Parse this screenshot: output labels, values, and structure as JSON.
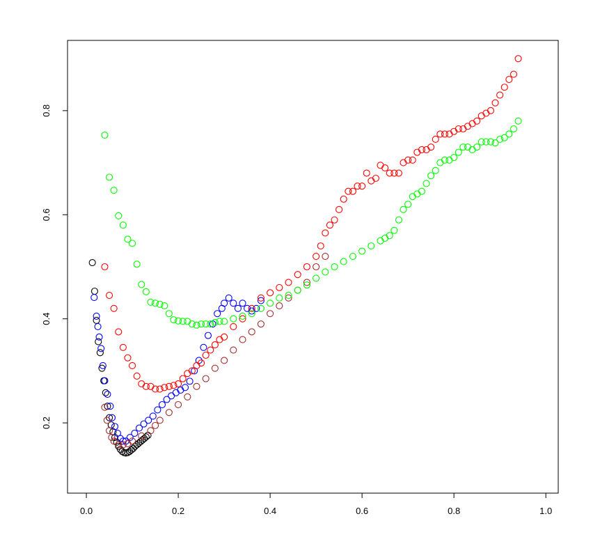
{
  "chart_data": {
    "type": "scatter",
    "xlim": [
      -0.041,
      1.027
    ],
    "ylim": [
      0.065,
      0.935
    ],
    "xticks": [
      {
        "value": 0,
        "label": "0.0"
      },
      0.2,
      0.4,
      0.6,
      0.8,
      {
        "value": 1,
        "label": "1.0"
      }
    ],
    "yticks": [
      0.2,
      0.4,
      0.6,
      0.8
    ],
    "series": [
      {
        "color": "#000000",
        "x": [
          0.013,
          0.018,
          0.022,
          0.026,
          0.03,
          0.034,
          0.038,
          0.042,
          0.046,
          0.05,
          0.054,
          0.058,
          0.062,
          0.066,
          0.07,
          0.074,
          0.078,
          0.082,
          0.086,
          0.09,
          0.094,
          0.098,
          0.102,
          0.106,
          0.11,
          0.114,
          0.118,
          0.122,
          0.126,
          0.13,
          0.134
        ],
        "y": [
          0.508,
          0.453,
          0.397,
          0.356,
          0.335,
          0.305,
          0.281,
          0.258,
          0.232,
          0.21,
          0.196,
          0.183,
          0.172,
          0.163,
          0.155,
          0.149,
          0.145,
          0.143,
          0.142,
          0.143,
          0.145,
          0.148,
          0.151,
          0.155,
          0.158,
          0.161,
          0.164,
          0.167,
          0.17,
          0.173,
          0.176
        ]
      },
      {
        "color": "#0000ff",
        "x": [
          0.017,
          0.022,
          0.025,
          0.028,
          0.032,
          0.036,
          0.04,
          0.046,
          0.052,
          0.056,
          0.062,
          0.068,
          0.074,
          0.08,
          0.086,
          0.095,
          0.105,
          0.115,
          0.125,
          0.135,
          0.145,
          0.155,
          0.165,
          0.175,
          0.185,
          0.195,
          0.205,
          0.215,
          0.225,
          0.235,
          0.245,
          0.255,
          0.265,
          0.275,
          0.285,
          0.295,
          0.3,
          0.31,
          0.32,
          0.33,
          0.34,
          0.35,
          0.36,
          0.37,
          0.38
        ],
        "y": [
          0.441,
          0.405,
          0.385,
          0.365,
          0.343,
          0.31,
          0.281,
          0.255,
          0.232,
          0.21,
          0.193,
          0.18,
          0.17,
          0.165,
          0.165,
          0.172,
          0.18,
          0.19,
          0.198,
          0.205,
          0.213,
          0.225,
          0.235,
          0.245,
          0.252,
          0.258,
          0.263,
          0.268,
          0.28,
          0.3,
          0.32,
          0.345,
          0.368,
          0.39,
          0.41,
          0.42,
          0.43,
          0.44,
          0.43,
          0.42,
          0.43,
          0.42,
          0.415,
          0.42,
          0.435
        ]
      },
      {
        "color": "#a52a2a",
        "x": [
          0.04,
          0.045,
          0.05,
          0.055,
          0.06,
          0.07,
          0.08,
          0.09,
          0.1,
          0.12,
          0.14,
          0.15,
          0.16,
          0.18,
          0.2,
          0.22,
          0.24,
          0.26,
          0.28,
          0.3,
          0.32,
          0.34,
          0.36,
          0.38,
          0.4,
          0.42,
          0.44,
          0.46,
          0.48,
          0.5,
          0.52
        ],
        "y": [
          0.23,
          0.205,
          0.185,
          0.172,
          0.165,
          0.158,
          0.158,
          0.16,
          0.165,
          0.175,
          0.185,
          0.195,
          0.205,
          0.22,
          0.235,
          0.25,
          0.27,
          0.285,
          0.305,
          0.32,
          0.34,
          0.36,
          0.375,
          0.39,
          0.41,
          0.425,
          0.44,
          0.455,
          0.47,
          0.5,
          0.52
        ]
      },
      {
        "color": "#ff0000",
        "x": [
          0.04,
          0.05,
          0.06,
          0.07,
          0.08,
          0.09,
          0.1,
          0.11,
          0.12,
          0.13,
          0.14,
          0.15,
          0.16,
          0.17,
          0.18,
          0.19,
          0.2,
          0.21,
          0.22,
          0.23,
          0.24,
          0.25,
          0.26,
          0.27,
          0.28,
          0.29,
          0.3,
          0.32,
          0.34,
          0.36,
          0.38,
          0.4,
          0.42,
          0.44,
          0.46,
          0.48,
          0.5,
          0.51,
          0.52,
          0.53,
          0.54,
          0.55,
          0.56,
          0.57,
          0.58,
          0.59,
          0.6,
          0.61,
          0.62,
          0.63,
          0.64,
          0.65,
          0.66,
          0.67,
          0.68,
          0.69,
          0.7,
          0.71,
          0.72,
          0.73,
          0.74,
          0.75,
          0.76,
          0.77,
          0.78,
          0.79,
          0.8,
          0.81,
          0.82,
          0.83,
          0.84,
          0.85,
          0.86,
          0.87,
          0.88,
          0.89,
          0.9,
          0.91,
          0.92,
          0.93,
          0.94
        ],
        "y": [
          0.5,
          0.445,
          0.42,
          0.375,
          0.345,
          0.325,
          0.31,
          0.29,
          0.275,
          0.27,
          0.27,
          0.265,
          0.265,
          0.268,
          0.27,
          0.272,
          0.275,
          0.285,
          0.295,
          0.3,
          0.31,
          0.315,
          0.33,
          0.34,
          0.35,
          0.36,
          0.365,
          0.385,
          0.4,
          0.42,
          0.44,
          0.45,
          0.46,
          0.47,
          0.485,
          0.5,
          0.52,
          0.54,
          0.565,
          0.58,
          0.59,
          0.61,
          0.63,
          0.645,
          0.645,
          0.655,
          0.655,
          0.68,
          0.665,
          0.67,
          0.695,
          0.69,
          0.68,
          0.68,
          0.68,
          0.7,
          0.705,
          0.705,
          0.72,
          0.725,
          0.725,
          0.73,
          0.745,
          0.755,
          0.755,
          0.755,
          0.76,
          0.765,
          0.765,
          0.77,
          0.775,
          0.78,
          0.79,
          0.795,
          0.8,
          0.815,
          0.83,
          0.845,
          0.86,
          0.87,
          0.9
        ]
      },
      {
        "color": "#00ff00",
        "x": [
          0.04,
          0.05,
          0.06,
          0.07,
          0.08,
          0.09,
          0.1,
          0.11,
          0.12,
          0.13,
          0.14,
          0.15,
          0.16,
          0.17,
          0.18,
          0.19,
          0.2,
          0.21,
          0.22,
          0.23,
          0.24,
          0.25,
          0.26,
          0.27,
          0.28,
          0.29,
          0.3,
          0.32,
          0.34,
          0.36,
          0.38,
          0.4,
          0.42,
          0.44,
          0.46,
          0.48,
          0.5,
          0.52,
          0.54,
          0.56,
          0.58,
          0.6,
          0.62,
          0.64,
          0.65,
          0.66,
          0.67,
          0.68,
          0.69,
          0.7,
          0.71,
          0.72,
          0.73,
          0.74,
          0.75,
          0.76,
          0.77,
          0.78,
          0.79,
          0.8,
          0.81,
          0.82,
          0.83,
          0.84,
          0.85,
          0.86,
          0.87,
          0.88,
          0.89,
          0.9,
          0.91,
          0.92,
          0.93,
          0.94
        ],
        "y": [
          0.753,
          0.672,
          0.647,
          0.598,
          0.58,
          0.553,
          0.545,
          0.505,
          0.466,
          0.452,
          0.432,
          0.43,
          0.428,
          0.425,
          0.41,
          0.398,
          0.396,
          0.395,
          0.395,
          0.39,
          0.388,
          0.39,
          0.39,
          0.39,
          0.393,
          0.395,
          0.395,
          0.4,
          0.405,
          0.41,
          0.42,
          0.43,
          0.44,
          0.445,
          0.455,
          0.465,
          0.478,
          0.49,
          0.5,
          0.51,
          0.52,
          0.53,
          0.54,
          0.55,
          0.555,
          0.56,
          0.57,
          0.59,
          0.61,
          0.62,
          0.635,
          0.64,
          0.645,
          0.66,
          0.675,
          0.685,
          0.7,
          0.705,
          0.705,
          0.71,
          0.72,
          0.73,
          0.73,
          0.725,
          0.73,
          0.74,
          0.74,
          0.74,
          0.738,
          0.745,
          0.748,
          0.755,
          0.765,
          0.78
        ]
      }
    ]
  }
}
